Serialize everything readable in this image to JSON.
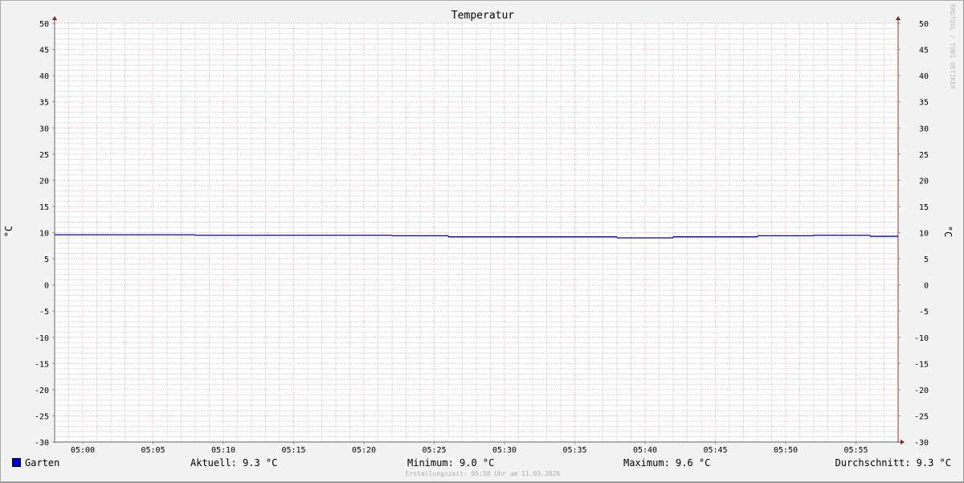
{
  "chart_data": {
    "type": "line",
    "title": "Temperatur",
    "ylabel": "°C",
    "ylabel_right": "°C",
    "ylim": [
      -30,
      50
    ],
    "yticks": [
      50,
      45,
      40,
      35,
      30,
      25,
      20,
      15,
      10,
      5,
      0,
      -5,
      -10,
      -15,
      -20,
      -25,
      -30
    ],
    "xlim": [
      "04:58",
      "05:58"
    ],
    "xticks": [
      "05:00",
      "05:05",
      "05:10",
      "05:15",
      "05:20",
      "05:25",
      "05:30",
      "05:35",
      "05:40",
      "05:45",
      "05:50",
      "05:55"
    ],
    "grid": true,
    "series": [
      {
        "name": "Garten",
        "color": "#0000cc",
        "step": true,
        "x": [
          "04:58",
          "05:08",
          "05:22",
          "05:26",
          "05:38",
          "05:42",
          "05:48",
          "05:52",
          "05:56",
          "05:58"
        ],
        "y": [
          9.6,
          9.5,
          9.4,
          9.2,
          9.0,
          9.2,
          9.4,
          9.5,
          9.3,
          9.3
        ]
      }
    ]
  },
  "legend": {
    "series_name": "Garten",
    "current": "Aktuell: 9.3 °C",
    "minimum": "Minimum: 9.0 °C",
    "maximum": "Maximum: 9.6 °C",
    "average": "Durchschnitt: 9.3 °C"
  },
  "footer": "Erstellungszeit: 05:58 Uhr am 11.03.2026",
  "watermark": "RRDTOOL / TOBI OETIKER"
}
